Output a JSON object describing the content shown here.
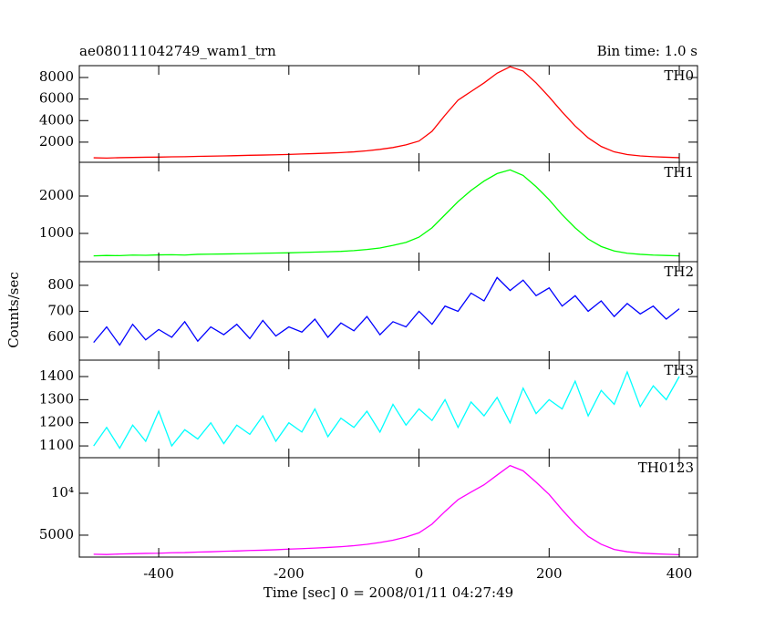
{
  "figure": {
    "title": "ae080111042749_wam1_trn",
    "bin_time": "Bin time: 1.0 s",
    "x_label": "Time [sec] 0 = 2008/01/11 04:27:49",
    "y_label": "Counts/sec"
  },
  "chart_data": [
    {
      "type": "line",
      "name": "TH0",
      "color": "#ff0000",
      "xlim": [
        -522,
        428
      ],
      "ylim": [
        130,
        9100
      ],
      "yticks": [
        2000,
        4000,
        6000,
        8000
      ],
      "x": [
        -500,
        -480,
        -460,
        -440,
        -420,
        -400,
        -380,
        -360,
        -340,
        -320,
        -300,
        -280,
        -260,
        -240,
        -220,
        -200,
        -180,
        -160,
        -140,
        -120,
        -100,
        -80,
        -60,
        -40,
        -20,
        0,
        20,
        40,
        60,
        80,
        100,
        120,
        140,
        160,
        180,
        200,
        220,
        240,
        260,
        280,
        300,
        320,
        340,
        360,
        380,
        400
      ],
      "values": [
        550,
        520,
        560,
        580,
        600,
        610,
        640,
        650,
        680,
        700,
        720,
        750,
        780,
        800,
        830,
        860,
        900,
        940,
        980,
        1030,
        1100,
        1200,
        1330,
        1500,
        1750,
        2100,
        3000,
        4500,
        5900,
        6700,
        7500,
        8400,
        9000,
        8600,
        7500,
        6200,
        4800,
        3500,
        2400,
        1600,
        1100,
        850,
        720,
        650,
        600,
        560
      ]
    },
    {
      "type": "line",
      "name": "TH1",
      "color": "#00ff00",
      "xlim": [
        -522,
        428
      ],
      "ylim": [
        244,
        2902
      ],
      "yticks": [
        1000,
        2000
      ],
      "x": [
        -500,
        -480,
        -460,
        -440,
        -420,
        -400,
        -380,
        -360,
        -340,
        -320,
        -300,
        -280,
        -260,
        -240,
        -220,
        -200,
        -180,
        -160,
        -140,
        -120,
        -100,
        -80,
        -60,
        -40,
        -20,
        0,
        20,
        40,
        60,
        80,
        100,
        120,
        140,
        160,
        180,
        200,
        220,
        240,
        260,
        280,
        300,
        320,
        340,
        360,
        380,
        400
      ],
      "values": [
        400,
        410,
        405,
        420,
        415,
        425,
        430,
        420,
        440,
        445,
        450,
        455,
        460,
        470,
        475,
        480,
        490,
        500,
        510,
        520,
        540,
        570,
        610,
        680,
        760,
        900,
        1150,
        1500,
        1850,
        2150,
        2400,
        2600,
        2700,
        2550,
        2250,
        1900,
        1500,
        1150,
        850,
        650,
        530,
        470,
        440,
        420,
        410,
        400
      ]
    },
    {
      "type": "line",
      "name": "TH2",
      "color": "#0000ff",
      "xlim": [
        -522,
        428
      ],
      "ylim": [
        512,
        891
      ],
      "yticks": [
        600,
        700,
        800
      ],
      "x": [
        -500,
        -480,
        -460,
        -440,
        -420,
        -400,
        -380,
        -360,
        -340,
        -320,
        -300,
        -280,
        -260,
        -240,
        -220,
        -200,
        -180,
        -160,
        -140,
        -120,
        -100,
        -80,
        -60,
        -40,
        -20,
        0,
        20,
        40,
        60,
        80,
        100,
        120,
        140,
        160,
        180,
        200,
        220,
        240,
        260,
        280,
        300,
        320,
        340,
        360,
        380,
        400
      ],
      "values": [
        580,
        640,
        570,
        650,
        590,
        630,
        600,
        660,
        585,
        640,
        610,
        650,
        595,
        665,
        605,
        640,
        620,
        670,
        600,
        655,
        625,
        680,
        610,
        660,
        640,
        700,
        650,
        720,
        700,
        770,
        740,
        830,
        780,
        820,
        760,
        790,
        720,
        760,
        700,
        740,
        680,
        730,
        690,
        720,
        670,
        710
      ]
    },
    {
      "type": "line",
      "name": "TH3",
      "color": "#00ffff",
      "xlim": [
        -522,
        428
      ],
      "ylim": [
        1049,
        1471
      ],
      "yticks": [
        1100,
        1200,
        1300,
        1400
      ],
      "x": [
        -500,
        -480,
        -460,
        -440,
        -420,
        -400,
        -380,
        -360,
        -340,
        -320,
        -300,
        -280,
        -260,
        -240,
        -220,
        -200,
        -180,
        -160,
        -140,
        -120,
        -100,
        -80,
        -60,
        -40,
        -20,
        0,
        20,
        40,
        60,
        80,
        100,
        120,
        140,
        160,
        180,
        200,
        220,
        240,
        260,
        280,
        300,
        320,
        340,
        360,
        380,
        400
      ],
      "values": [
        1100,
        1180,
        1090,
        1190,
        1120,
        1250,
        1100,
        1170,
        1130,
        1200,
        1110,
        1190,
        1150,
        1230,
        1120,
        1200,
        1160,
        1260,
        1140,
        1220,
        1180,
        1250,
        1160,
        1280,
        1190,
        1260,
        1210,
        1300,
        1180,
        1290,
        1230,
        1310,
        1200,
        1350,
        1240,
        1300,
        1260,
        1380,
        1230,
        1340,
        1280,
        1420,
        1270,
        1360,
        1300,
        1400
      ]
    },
    {
      "type": "line",
      "name": "TH0123",
      "color": "#ff00ff",
      "log": true,
      "xlim": [
        -522,
        428
      ],
      "ylim": [
        3480,
        18000
      ],
      "yticks": [
        {
          "value": 5000,
          "label": "5000"
        },
        {
          "value": 10000,
          "label": "10⁴"
        }
      ],
      "xticks": [
        -400,
        -200,
        0,
        200,
        400
      ],
      "x": [
        -500,
        -480,
        -460,
        -440,
        -420,
        -400,
        -380,
        -360,
        -340,
        -320,
        -300,
        -280,
        -260,
        -240,
        -220,
        -200,
        -180,
        -160,
        -140,
        -120,
        -100,
        -80,
        -60,
        -40,
        -20,
        0,
        20,
        40,
        60,
        80,
        100,
        120,
        140,
        160,
        180,
        200,
        220,
        240,
        260,
        280,
        300,
        320,
        340,
        360,
        380,
        400
      ],
      "values": [
        3650,
        3630,
        3660,
        3680,
        3700,
        3710,
        3740,
        3750,
        3780,
        3800,
        3830,
        3850,
        3880,
        3900,
        3930,
        3970,
        4000,
        4040,
        4080,
        4130,
        4200,
        4300,
        4430,
        4600,
        4850,
        5200,
        6000,
        7400,
        9000,
        10200,
        11500,
        13500,
        15800,
        14500,
        12000,
        9800,
        7600,
        6000,
        4900,
        4300,
        3950,
        3800,
        3720,
        3680,
        3650,
        3620
      ]
    }
  ]
}
